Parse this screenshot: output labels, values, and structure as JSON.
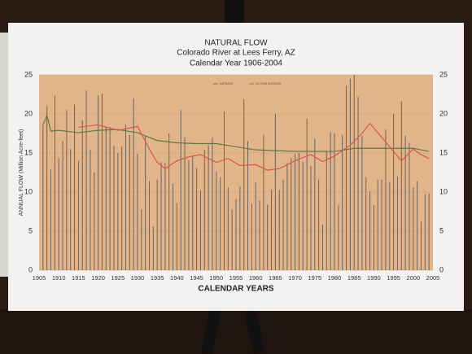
{
  "chart_data": {
    "type": "bar",
    "title": "NATURAL FLOW",
    "subtitle": "Colorado River at Lees Ferry, AZ",
    "subtitle2": "Calendar Year 1906-2004",
    "x_label": "CALENDAR YEARS",
    "y_label": "ANNUAL FLOW (Million Acre-feet)",
    "x": [
      1906,
      1907,
      1908,
      1909,
      1910,
      1911,
      1912,
      1913,
      1914,
      1915,
      1916,
      1917,
      1918,
      1919,
      1920,
      1921,
      1922,
      1923,
      1924,
      1925,
      1926,
      1927,
      1928,
      1929,
      1930,
      1931,
      1932,
      1933,
      1934,
      1935,
      1936,
      1937,
      1938,
      1939,
      1940,
      1941,
      1942,
      1943,
      1944,
      1945,
      1946,
      1947,
      1948,
      1949,
      1950,
      1951,
      1952,
      1953,
      1954,
      1955,
      1956,
      1957,
      1958,
      1959,
      1960,
      1961,
      1962,
      1963,
      1964,
      1965,
      1966,
      1967,
      1968,
      1969,
      1970,
      1971,
      1972,
      1973,
      1974,
      1975,
      1976,
      1977,
      1978,
      1979,
      1980,
      1981,
      1982,
      1983,
      1984,
      1985,
      1986,
      1987,
      1988,
      1989,
      1990,
      1991,
      1992,
      1993,
      1994,
      1995,
      1996,
      1997,
      1998,
      1999,
      2000,
      2001,
      2002,
      2003,
      2004
    ],
    "values": [
      18.6,
      21.0,
      12.9,
      22.3,
      14.4,
      16.5,
      20.5,
      15.5,
      21.2,
      14.0,
      19.2,
      23.0,
      15.4,
      12.5,
      22.4,
      22.6,
      18.3,
      18.3,
      15.9,
      15.0,
      15.8,
      18.6,
      17.3,
      22.0,
      14.9,
      7.8,
      17.2,
      11.4,
      5.6,
      11.6,
      13.8,
      13.7,
      17.5,
      11.1,
      8.6,
      20.5,
      17.0,
      14.1,
      14.6,
      13.1,
      10.2,
      15.4,
      16.0,
      17.0,
      12.6,
      11.9,
      20.3,
      10.6,
      7.8,
      9.1,
      10.7,
      21.9,
      16.5,
      8.5,
      11.2,
      8.9,
      17.3,
      8.4,
      10.3,
      20.0,
      10.3,
      11.6,
      13.7,
      14.4,
      14.9,
      15.0,
      13.9,
      19.4,
      13.3,
      16.8,
      11.6,
      5.8,
      15.3,
      17.7,
      17.5,
      8.3,
      17.3,
      23.6,
      24.5,
      25.0,
      22.2,
      17.2,
      11.9,
      10.1,
      8.3,
      11.6,
      11.6,
      18.0,
      11.3,
      20.0,
      12.0,
      21.6,
      17.2,
      16.3,
      10.6,
      11.4,
      6.3,
      9.7,
      9.8
    ],
    "color": "#6b6460",
    "series": [
      {
        "name": "AVERAGE",
        "color": "#5f7a45",
        "x": [
          1906,
          1907,
          1908,
          1910,
          1915,
          1920,
          1925,
          1930,
          1935,
          1940,
          1945,
          1950,
          1955,
          1960,
          1965,
          1970,
          1975,
          1980,
          1985,
          1990,
          1995,
          2000,
          2004
        ],
        "values": [
          18.6,
          19.8,
          17.8,
          17.9,
          17.6,
          17.9,
          18.0,
          17.6,
          16.6,
          16.3,
          16.2,
          16.2,
          15.8,
          15.4,
          15.3,
          15.2,
          15.2,
          15.2,
          15.6,
          15.6,
          15.6,
          15.6,
          15.2
        ]
      },
      {
        "name": "10 YEAR AVERAGE",
        "color": "#d9574a",
        "x": [
          1915,
          1920,
          1925,
          1930,
          1933,
          1935,
          1937,
          1940,
          1943,
          1946,
          1950,
          1953,
          1956,
          1960,
          1963,
          1966,
          1970,
          1974,
          1977,
          1980,
          1984,
          1987,
          1989,
          1992,
          1995,
          1997,
          2000,
          2002,
          2004
        ],
        "values": [
          18.3,
          18.6,
          17.9,
          18.4,
          15.5,
          13.8,
          13.0,
          14.0,
          14.5,
          14.8,
          13.8,
          14.3,
          13.4,
          13.5,
          12.8,
          13.0,
          14.0,
          14.8,
          13.9,
          14.6,
          16.0,
          17.5,
          18.8,
          17.0,
          15.2,
          14.0,
          15.5,
          14.8,
          14.3
        ]
      }
    ],
    "xlim": [
      1905,
      2005
    ],
    "xticks": [
      1905,
      1910,
      1915,
      1920,
      1925,
      1930,
      1935,
      1940,
      1945,
      1950,
      1955,
      1960,
      1965,
      1970,
      1975,
      1980,
      1985,
      1990,
      1995,
      2000,
      2005
    ],
    "ylim": [
      0,
      25
    ],
    "yticks": [
      0,
      5,
      10,
      15,
      20,
      25
    ],
    "grid": true,
    "legend": "top"
  }
}
